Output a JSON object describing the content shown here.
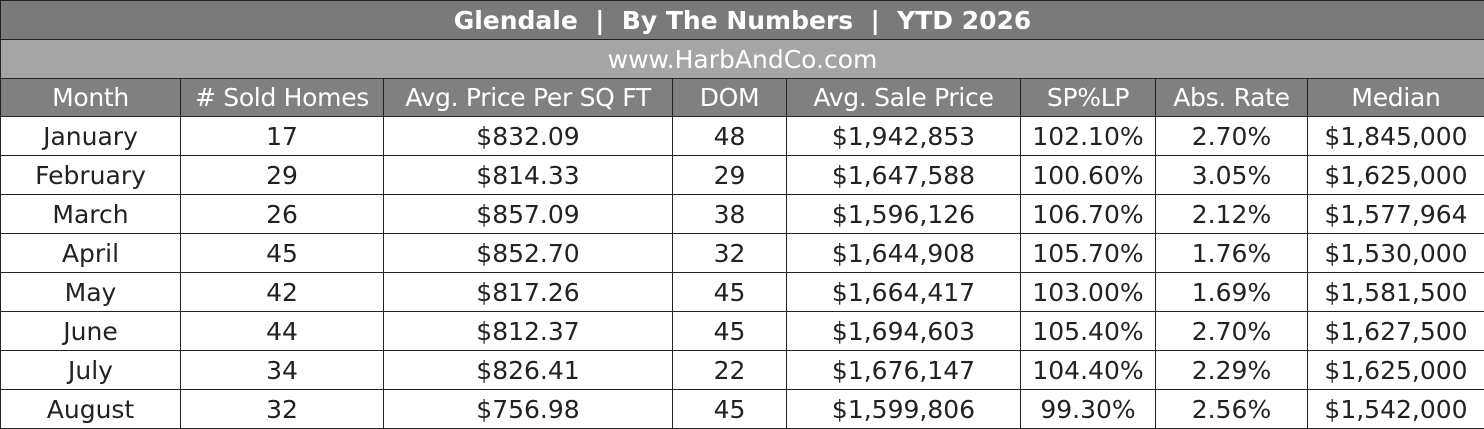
{
  "table": {
    "title": "Glendale  |  By The Numbers  |  YTD 2026",
    "subtitle": "www.HarbAndCo.com",
    "columns": [
      "Month",
      "# Sold Homes",
      "Avg. Price Per SQ FT",
      "DOM",
      "Avg. Sale Price",
      "SP%LP",
      "Abs. Rate",
      "Median"
    ],
    "rows": [
      [
        "January",
        "17",
        "$832.09",
        "48",
        "$1,942,853",
        "102.10%",
        "2.70%",
        "$1,845,000"
      ],
      [
        "February",
        "29",
        "$814.33",
        "29",
        "$1,647,588",
        "100.60%",
        "3.05%",
        "$1,625,000"
      ],
      [
        "March",
        "26",
        "$857.09",
        "38",
        "$1,596,126",
        "106.70%",
        "2.12%",
        "$1,577,964"
      ],
      [
        "April",
        "45",
        "$852.70",
        "32",
        "$1,644,908",
        "105.70%",
        "1.76%",
        "$1,530,000"
      ],
      [
        "May",
        "42",
        "$817.26",
        "45",
        "$1,664,417",
        "103.00%",
        "1.69%",
        "$1,581,500"
      ],
      [
        "June",
        "44",
        "$812.37",
        "45",
        "$1,694,603",
        "105.40%",
        "2.70%",
        "$1,627,500"
      ],
      [
        "July",
        "34",
        "$826.41",
        "22",
        "$1,676,147",
        "104.40%",
        "2.29%",
        "$1,625,000"
      ],
      [
        "August",
        "32",
        "$756.98",
        "45",
        "$1,599,806",
        "99.30%",
        "2.56%",
        "$1,542,000"
      ]
    ]
  }
}
